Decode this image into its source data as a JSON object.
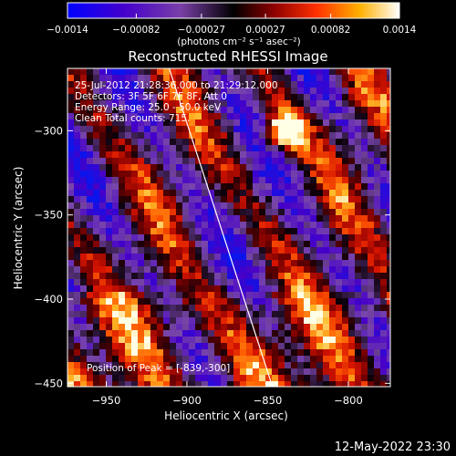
{
  "colorbar": {
    "tick_labels": [
      "-0.0014",
      "-0.00082",
      "-0.00027",
      "0.00027",
      "0.00082",
      "0.0014"
    ],
    "units_line": "(photons cm⁻² s⁻¹ asec⁻²)",
    "range": [
      -0.0014,
      0.0014
    ]
  },
  "chart_data": {
    "type": "heatmap",
    "title": "Reconstructed RHESSI Image",
    "xlabel": "Heliocentric X (arcsec)",
    "ylabel": "Heliocentric Y (arcsec)",
    "xlim": [
      -974,
      -774
    ],
    "ylim": [
      -452,
      -263
    ],
    "xticks": [
      -950,
      -900,
      -850,
      -800
    ],
    "yticks": [
      -300,
      -350,
      -400,
      -450
    ],
    "xtick_labels": [
      "−950",
      "−900",
      "−850",
      "−800"
    ],
    "ytick_labels": [
      "−300",
      "−350",
      "−400",
      "−450"
    ],
    "grid": false,
    "peak": {
      "x": -839,
      "y": -300
    },
    "limb_line": [
      [
        -911,
        -263
      ],
      [
        -847,
        -452
      ]
    ],
    "colormap": "red-temperature with blue-violet negatives"
  },
  "annotations": {
    "line1": "25-Jul-2012 21:28:36.000 to 21:29:12.000",
    "line2": "Detectors: 3F 5F 6F 7F 8F, Att 0",
    "line3": "Energy Range: 25.0 - 50.0 keV",
    "line4": "Clean    Total counts: 715.",
    "peak_text": "Position of Peak = [-839,-300]"
  },
  "footer": {
    "timestamp": "12-May-2022 23:30"
  }
}
